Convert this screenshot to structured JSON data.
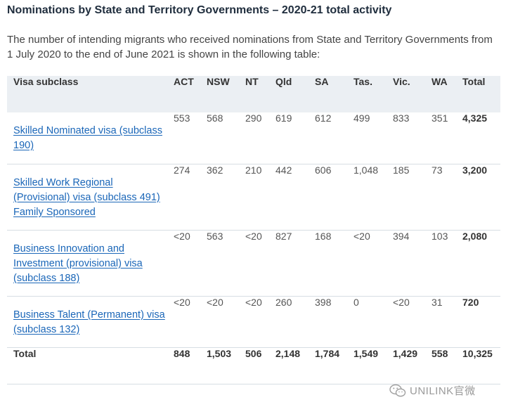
{
  "title": "Nominations by State and Territory Governments – 2020-21 total activity",
  "intro": "The number of intending migrants who received nominations from State and Territory Governments from 1 July 2020 to the end of June 2021 is shown in the following table:",
  "table": {
    "headers": [
      "Visa subclass",
      "ACT",
      "NSW",
      "NT",
      "Qld",
      "SA",
      "Tas.",
      "Vic.",
      "WA",
      "Total"
    ],
    "rows": [
      {
        "visa": "Skilled Nominated visa (subclass 190)",
        "values": [
          "553",
          "568",
          "290",
          "619",
          "612",
          "499",
          "833",
          "351"
        ],
        "total": "4,325"
      },
      {
        "visa": "Skilled Work Regional (Provisional) visa (subclass 491) Family Sponsored",
        "values": [
          "274",
          "362",
          "210",
          "442",
          "606",
          "1,048",
          "185",
          "73"
        ],
        "total": "3,200"
      },
      {
        "visa": "Business Innovation and Investment (provisional) visa (subclass 188)",
        "values": [
          "<20",
          "563",
          "<20",
          "827",
          "168",
          "<20",
          "394",
          "103"
        ],
        "total": "2,080"
      },
      {
        "visa": "Business Talent (Permanent) visa (subclass 132)",
        "values": [
          "<20",
          "<20",
          "<20",
          "260",
          "398",
          "0",
          "<20",
          "31"
        ],
        "total": "720"
      }
    ],
    "footer": {
      "label": "Total",
      "values": [
        "848",
        "1,503",
        "506",
        "2,148",
        "1,784",
        "1,549",
        "1,429",
        "558"
      ],
      "total": "10,325"
    }
  },
  "watermark": {
    "text": "UNILINK官微",
    "icon": "wechat-icon"
  },
  "colors": {
    "link": "#1a66b8",
    "header_bg": "#ebeff3",
    "heading": "#1f2d3d"
  }
}
